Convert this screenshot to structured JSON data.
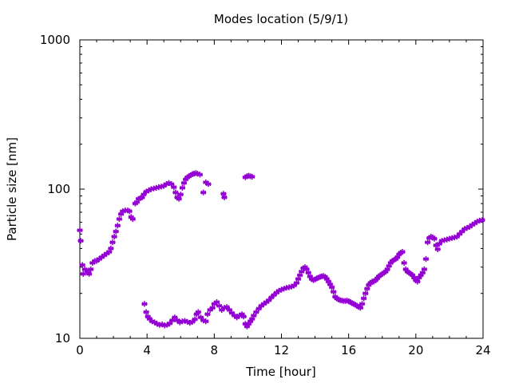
{
  "chart_data": {
    "type": "scatter",
    "title": "Modes location (5/9/1)",
    "xlabel": "Time [hour]",
    "ylabel": "Particle size [nm]",
    "xlim": [
      0,
      24
    ],
    "ylim": [
      10,
      1000
    ],
    "yscale": "log",
    "x_ticks": [
      0,
      4,
      8,
      12,
      16,
      20,
      24
    ],
    "y_ticks": [
      10,
      100,
      1000
    ],
    "grid": false,
    "marker": "star",
    "color": "#9400d3",
    "series": [
      {
        "points": [
          [
            0.0,
            53
          ],
          [
            0.05,
            45
          ],
          [
            0.15,
            31
          ],
          [
            0.2,
            27
          ],
          [
            0.3,
            29
          ],
          [
            0.45,
            28
          ],
          [
            0.55,
            27
          ],
          [
            0.65,
            29
          ],
          [
            0.75,
            32
          ],
          [
            0.9,
            33
          ],
          [
            1.0,
            33
          ],
          [
            1.15,
            34
          ],
          [
            1.3,
            35
          ],
          [
            1.45,
            36
          ],
          [
            1.6,
            37
          ],
          [
            1.75,
            38
          ],
          [
            1.85,
            40
          ],
          [
            1.95,
            44
          ],
          [
            2.05,
            48
          ],
          [
            2.15,
            52
          ],
          [
            2.25,
            57
          ],
          [
            2.35,
            63
          ],
          [
            2.45,
            68
          ],
          [
            2.55,
            71
          ],
          [
            2.7,
            72
          ],
          [
            2.85,
            72
          ],
          [
            2.95,
            71
          ],
          [
            3.05,
            65
          ],
          [
            3.15,
            63
          ],
          [
            3.3,
            80
          ],
          [
            3.4,
            82
          ],
          [
            3.5,
            86
          ],
          [
            3.6,
            87
          ],
          [
            3.7,
            88
          ],
          [
            3.8,
            92
          ],
          [
            3.95,
            96
          ],
          [
            4.1,
            98
          ],
          [
            4.25,
            100
          ],
          [
            4.4,
            101
          ],
          [
            4.55,
            102
          ],
          [
            4.7,
            103
          ],
          [
            4.85,
            104
          ],
          [
            5.0,
            105
          ],
          [
            5.15,
            108
          ],
          [
            5.3,
            110
          ],
          [
            5.45,
            108
          ],
          [
            5.6,
            103
          ],
          [
            5.7,
            95
          ],
          [
            5.8,
            88
          ],
          [
            5.9,
            86
          ],
          [
            6.0,
            92
          ],
          [
            6.1,
            102
          ],
          [
            6.2,
            110
          ],
          [
            6.3,
            116
          ],
          [
            6.4,
            120
          ],
          [
            6.5,
            122
          ],
          [
            6.6,
            124
          ],
          [
            6.7,
            126
          ],
          [
            6.8,
            127
          ],
          [
            6.9,
            128
          ],
          [
            7.0,
            127
          ],
          [
            7.15,
            125
          ],
          [
            7.35,
            95
          ],
          [
            7.5,
            111
          ],
          [
            7.65,
            108
          ],
          [
            8.55,
            93
          ],
          [
            8.6,
            88
          ],
          [
            9.85,
            120
          ],
          [
            9.95,
            122
          ],
          [
            10.05,
            123
          ],
          [
            10.15,
            122
          ],
          [
            10.25,
            121
          ]
        ]
      },
      {
        "points": [
          [
            3.85,
            17
          ],
          [
            3.95,
            15
          ],
          [
            4.05,
            14
          ],
          [
            4.15,
            13.5
          ],
          [
            4.3,
            13
          ],
          [
            4.45,
            12.8
          ],
          [
            4.6,
            12.5
          ],
          [
            4.75,
            12.3
          ],
          [
            4.9,
            12.4
          ],
          [
            5.05,
            12.2
          ],
          [
            5.2,
            12.3
          ],
          [
            5.35,
            12.6
          ],
          [
            5.5,
            13.2
          ],
          [
            5.65,
            13.8
          ],
          [
            5.8,
            13.2
          ],
          [
            5.95,
            12.8
          ],
          [
            6.1,
            13
          ],
          [
            6.25,
            13.1
          ],
          [
            6.4,
            12.9
          ],
          [
            6.55,
            12.7
          ],
          [
            6.7,
            12.9
          ],
          [
            6.85,
            13.4
          ],
          [
            6.95,
            14.5
          ],
          [
            7.05,
            15
          ],
          [
            7.2,
            13.8
          ],
          [
            7.35,
            13.2
          ],
          [
            7.5,
            13
          ],
          [
            7.6,
            14.5
          ],
          [
            7.75,
            15.5
          ],
          [
            7.9,
            16
          ],
          [
            8.0,
            17
          ],
          [
            8.15,
            17.5
          ],
          [
            8.3,
            16.5
          ],
          [
            8.45,
            15.5
          ],
          [
            8.6,
            16
          ],
          [
            8.75,
            16.2
          ],
          [
            8.9,
            15.5
          ],
          [
            9.05,
            14.8
          ],
          [
            9.2,
            14.2
          ],
          [
            9.35,
            13.8
          ],
          [
            9.5,
            14.2
          ],
          [
            9.65,
            14.5
          ],
          [
            9.75,
            14
          ],
          [
            9.85,
            12.5
          ],
          [
            9.95,
            12
          ],
          [
            10.05,
            12.5
          ],
          [
            10.15,
            13
          ],
          [
            10.25,
            13.5
          ],
          [
            10.35,
            14.2
          ],
          [
            10.5,
            15
          ],
          [
            10.65,
            15.8
          ],
          [
            10.8,
            16.5
          ],
          [
            10.95,
            17
          ],
          [
            11.1,
            17.5
          ],
          [
            11.25,
            18
          ],
          [
            11.4,
            18.8
          ],
          [
            11.55,
            19.5
          ],
          [
            11.7,
            20.2
          ],
          [
            11.85,
            20.8
          ],
          [
            12.0,
            21.2
          ],
          [
            12.15,
            21.5
          ],
          [
            12.3,
            21.8
          ],
          [
            12.45,
            22
          ],
          [
            12.6,
            22.2
          ],
          [
            12.75,
            22.6
          ],
          [
            12.9,
            23.5
          ],
          [
            13.0,
            25
          ],
          [
            13.1,
            26.5
          ],
          [
            13.2,
            28
          ],
          [
            13.3,
            29.5
          ],
          [
            13.4,
            30
          ],
          [
            13.5,
            29
          ],
          [
            13.6,
            27.5
          ],
          [
            13.7,
            26
          ],
          [
            13.8,
            25
          ],
          [
            13.9,
            24.5
          ],
          [
            14.0,
            24.8
          ],
          [
            14.1,
            25.2
          ],
          [
            14.2,
            25.5
          ],
          [
            14.3,
            25.8
          ],
          [
            14.4,
            26
          ],
          [
            14.5,
            26.2
          ],
          [
            14.6,
            25.8
          ],
          [
            14.7,
            25
          ],
          [
            14.8,
            24
          ],
          [
            14.9,
            23
          ],
          [
            15.0,
            22
          ],
          [
            15.1,
            20.5
          ],
          [
            15.2,
            19
          ],
          [
            15.3,
            18.5
          ],
          [
            15.4,
            18.2
          ],
          [
            15.5,
            18
          ],
          [
            15.6,
            17.9
          ],
          [
            15.7,
            17.8
          ],
          [
            15.8,
            17.8
          ],
          [
            15.9,
            17.9
          ],
          [
            16.0,
            17.7
          ],
          [
            16.1,
            17.5
          ],
          [
            16.2,
            17.2
          ],
          [
            16.3,
            17
          ],
          [
            16.4,
            16.8
          ],
          [
            16.5,
            16.5
          ],
          [
            16.6,
            16.2
          ],
          [
            16.7,
            16
          ],
          [
            16.8,
            17
          ],
          [
            16.9,
            18.5
          ],
          [
            17.0,
            20
          ],
          [
            17.1,
            21.5
          ],
          [
            17.2,
            22.8
          ],
          [
            17.3,
            23.5
          ],
          [
            17.4,
            24
          ],
          [
            17.5,
            24
          ],
          [
            17.6,
            24.5
          ],
          [
            17.7,
            25.2
          ],
          [
            17.8,
            26
          ],
          [
            17.9,
            26.5
          ],
          [
            18.0,
            27
          ],
          [
            18.1,
            27.5
          ],
          [
            18.2,
            28
          ],
          [
            18.3,
            29
          ],
          [
            18.4,
            30.5
          ],
          [
            18.5,
            32
          ],
          [
            18.6,
            33
          ],
          [
            18.7,
            33.5
          ],
          [
            18.8,
            34
          ],
          [
            18.9,
            35
          ],
          [
            19.0,
            36.5
          ],
          [
            19.1,
            37.5
          ],
          [
            19.2,
            38
          ],
          [
            19.3,
            32
          ],
          [
            19.4,
            29
          ],
          [
            19.5,
            28
          ],
          [
            19.6,
            27.5
          ],
          [
            19.7,
            27
          ],
          [
            19.8,
            26.5
          ],
          [
            19.9,
            25.5
          ],
          [
            20.0,
            24.5
          ],
          [
            20.1,
            24
          ],
          [
            20.2,
            25.5
          ],
          [
            20.3,
            26.5
          ],
          [
            20.4,
            27.5
          ],
          [
            20.5,
            29
          ],
          [
            20.6,
            34
          ],
          [
            20.7,
            44
          ],
          [
            20.8,
            47
          ],
          [
            20.9,
            48
          ],
          [
            21.0,
            47.5
          ],
          [
            21.1,
            46.5
          ],
          [
            21.2,
            42
          ],
          [
            21.3,
            39.5
          ],
          [
            21.4,
            43
          ],
          [
            21.55,
            45
          ],
          [
            21.7,
            45.5
          ],
          [
            21.85,
            46
          ],
          [
            22.0,
            46.5
          ],
          [
            22.15,
            47
          ],
          [
            22.3,
            47.5
          ],
          [
            22.45,
            48
          ],
          [
            22.6,
            50
          ],
          [
            22.75,
            52
          ],
          [
            22.9,
            54
          ],
          [
            23.05,
            55
          ],
          [
            23.2,
            56
          ],
          [
            23.35,
            57.5
          ],
          [
            23.5,
            59
          ],
          [
            23.65,
            60.5
          ],
          [
            23.8,
            61.5
          ],
          [
            23.95,
            62
          ]
        ]
      }
    ]
  }
}
